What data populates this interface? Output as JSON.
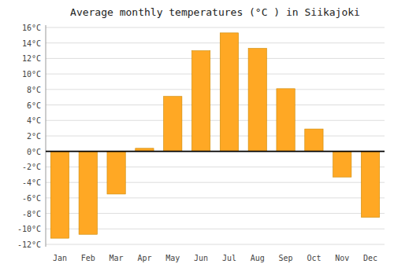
{
  "chart_data": {
    "type": "bar",
    "title": "Average monthly temperatures (°C ) in Siikajoki",
    "categories": [
      "Jan",
      "Feb",
      "Mar",
      "Apr",
      "May",
      "Jun",
      "Jul",
      "Aug",
      "Sep",
      "Oct",
      "Nov",
      "Dec"
    ],
    "values": [
      -11.2,
      -10.7,
      -5.5,
      0.4,
      7.1,
      13.0,
      15.3,
      13.3,
      8.1,
      2.9,
      -3.3,
      -8.5
    ],
    "color": "#FFA824",
    "ylim": [
      -12.3,
      16.3
    ],
    "yticks": [
      {
        "value": -12,
        "label": "-12°C"
      },
      {
        "value": -10,
        "label": "-10°C"
      },
      {
        "value": -8,
        "label": "-8°C"
      },
      {
        "value": -6,
        "label": "-6°C"
      },
      {
        "value": -4,
        "label": "-4°C"
      },
      {
        "value": -2,
        "label": "-2°C"
      },
      {
        "value": 0,
        "label": "0°C"
      },
      {
        "value": 2,
        "label": "2°C"
      },
      {
        "value": 4,
        "label": "4°C"
      },
      {
        "value": 6,
        "label": "6°C"
      },
      {
        "value": 8,
        "label": "8°C"
      },
      {
        "value": 10,
        "label": "10°C"
      },
      {
        "value": 12,
        "label": "12°C"
      },
      {
        "value": 14,
        "label": "14°C"
      },
      {
        "value": 16,
        "label": "16°C"
      }
    ],
    "grid": true
  }
}
